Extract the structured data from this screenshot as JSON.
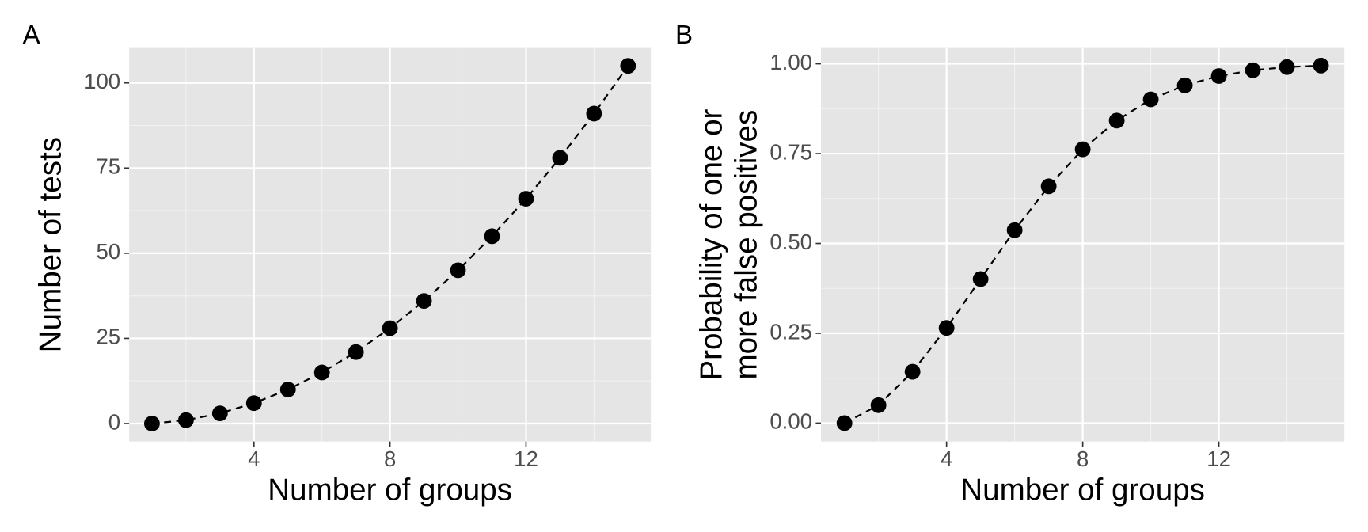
{
  "chart_data": [
    {
      "type": "scatter",
      "panel_label": "A",
      "xlabel": "Number of groups",
      "ylabel": "Number of tests",
      "x": [
        1,
        2,
        3,
        4,
        5,
        6,
        7,
        8,
        9,
        10,
        11,
        12,
        13,
        14,
        15
      ],
      "values": [
        0,
        1,
        3,
        6,
        10,
        15,
        21,
        28,
        36,
        45,
        55,
        66,
        78,
        91,
        105
      ],
      "color": "#000000",
      "line_style": "dashed",
      "grid": true,
      "xlim": [
        0.33,
        15.67
      ],
      "ylim": [
        -5.25,
        110.25
      ],
      "xticks": [
        4,
        8,
        12
      ],
      "yticks": [
        0,
        25,
        50,
        75,
        100
      ]
    },
    {
      "type": "scatter",
      "panel_label": "B",
      "xlabel": "Number of groups",
      "ylabel": [
        "Probability of one or",
        "more false positives"
      ],
      "x": [
        1,
        2,
        3,
        4,
        5,
        6,
        7,
        8,
        9,
        10,
        11,
        12,
        13,
        14,
        15
      ],
      "values": [
        0,
        0.05,
        0.143,
        0.265,
        0.401,
        0.537,
        0.659,
        0.762,
        0.842,
        0.901,
        0.94,
        0.966,
        0.982,
        0.991,
        0.995
      ],
      "color": "#000000",
      "line_style": "dashed",
      "grid": true,
      "xlim": [
        0.31,
        15.69
      ],
      "ylim": [
        -0.051,
        1.044
      ],
      "xticks": [
        4,
        8,
        12
      ],
      "yticks": [
        {
          "value": 0,
          "label": "0.00"
        },
        {
          "value": 0.25,
          "label": "0.25"
        },
        {
          "value": 0.5,
          "label": "0.50"
        },
        {
          "value": 0.75,
          "label": "0.75"
        },
        {
          "value": 1,
          "label": "1.00"
        }
      ]
    }
  ]
}
